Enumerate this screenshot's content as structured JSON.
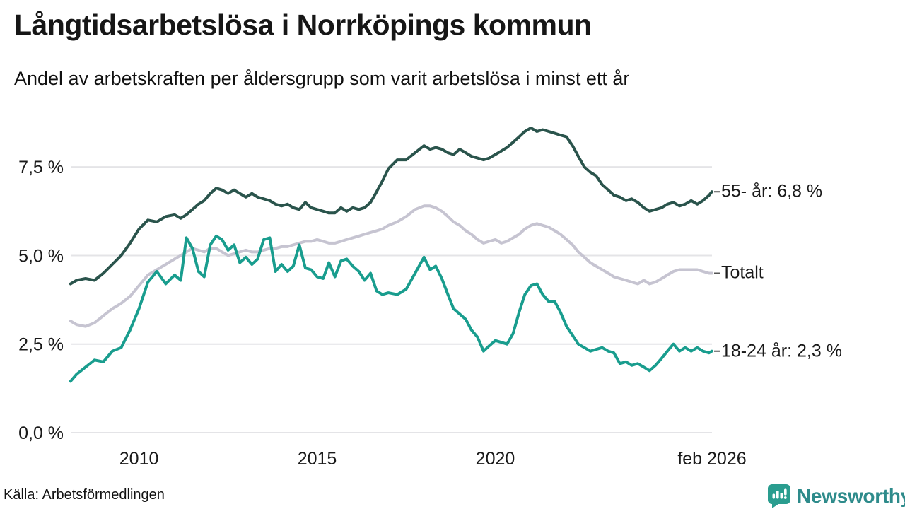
{
  "chart_data": {
    "type": "line",
    "title": "Långtidsarbetslösa i Norrköpings kommun",
    "subtitle": "Andel av arbetskraften per åldersgrupp som varit arbetslösa i minst ett år",
    "source": "Källa: Arbetsförmedlingen",
    "x_range": [
      2008.083,
      2026.083
    ],
    "y_range": [
      0,
      8.9
    ],
    "grid": "horizontal-only",
    "legend_position": "end-of-line-labels-right",
    "y_ticks": [
      {
        "value": 0,
        "label": "0,0 %"
      },
      {
        "value": 2.5,
        "label": "2,5 %"
      },
      {
        "value": 5,
        "label": "5,0 %"
      },
      {
        "value": 7.5,
        "label": "7,5 %"
      }
    ],
    "x_ticks": [
      {
        "value": 2010,
        "label": "2010"
      },
      {
        "value": 2015,
        "label": "2015"
      },
      {
        "value": 2020,
        "label": "2020"
      },
      {
        "value": 2026.083,
        "label": "feb 2026"
      }
    ],
    "x": [
      2008.08,
      2008.25,
      2008.5,
      2008.75,
      2009,
      2009.25,
      2009.5,
      2009.75,
      2010,
      2010.25,
      2010.5,
      2010.75,
      2011,
      2011.17,
      2011.33,
      2011.5,
      2011.67,
      2011.83,
      2012,
      2012.17,
      2012.33,
      2012.5,
      2012.67,
      2012.83,
      2013,
      2013.17,
      2013.33,
      2013.5,
      2013.67,
      2013.83,
      2014,
      2014.17,
      2014.33,
      2014.5,
      2014.67,
      2014.83,
      2015,
      2015.17,
      2015.33,
      2015.5,
      2015.67,
      2015.83,
      2016,
      2016.17,
      2016.33,
      2016.5,
      2016.67,
      2016.83,
      2017,
      2017.25,
      2017.5,
      2017.75,
      2018,
      2018.17,
      2018.33,
      2018.5,
      2018.67,
      2018.83,
      2019,
      2019.17,
      2019.33,
      2019.5,
      2019.67,
      2019.83,
      2020,
      2020.17,
      2020.33,
      2020.5,
      2020.67,
      2020.83,
      2021,
      2021.17,
      2021.33,
      2021.5,
      2021.67,
      2021.83,
      2022,
      2022.17,
      2022.33,
      2022.5,
      2022.67,
      2022.83,
      2023,
      2023.17,
      2023.33,
      2023.5,
      2023.67,
      2023.83,
      2024,
      2024.17,
      2024.33,
      2024.5,
      2024.67,
      2024.83,
      2025,
      2025.17,
      2025.33,
      2025.5,
      2025.67,
      2025.83,
      2026,
      2026.08
    ],
    "series": [
      {
        "id": "55-ar",
        "label": "55- år",
        "end_label": "55- år: 6,8 %",
        "final_value": "6,8 %",
        "color": "#2a544c",
        "values": [
          4.2,
          4.3,
          4.35,
          4.3,
          4.5,
          4.75,
          5.0,
          5.35,
          5.75,
          6.0,
          5.95,
          6.1,
          6.15,
          6.05,
          6.15,
          6.3,
          6.45,
          6.55,
          6.75,
          6.9,
          6.85,
          6.75,
          6.85,
          6.75,
          6.65,
          6.75,
          6.65,
          6.6,
          6.55,
          6.45,
          6.4,
          6.45,
          6.35,
          6.3,
          6.5,
          6.35,
          6.3,
          6.25,
          6.2,
          6.2,
          6.35,
          6.25,
          6.35,
          6.3,
          6.35,
          6.5,
          6.8,
          7.1,
          7.45,
          7.7,
          7.7,
          7.9,
          8.1,
          8.0,
          8.05,
          8.0,
          7.9,
          7.85,
          8.0,
          7.9,
          7.8,
          7.75,
          7.7,
          7.75,
          7.85,
          7.95,
          8.05,
          8.2,
          8.35,
          8.5,
          8.6,
          8.5,
          8.55,
          8.5,
          8.45,
          8.4,
          8.35,
          8.1,
          7.8,
          7.5,
          7.35,
          7.25,
          7.0,
          6.85,
          6.7,
          6.65,
          6.55,
          6.6,
          6.5,
          6.35,
          6.25,
          6.3,
          6.35,
          6.45,
          6.5,
          6.4,
          6.45,
          6.55,
          6.45,
          6.55,
          6.7,
          6.8
        ]
      },
      {
        "id": "totalt",
        "label": "Totalt",
        "end_label": "Totalt",
        "final_value": "",
        "color": "#c6c4d1",
        "values": [
          3.15,
          3.05,
          3.0,
          3.1,
          3.3,
          3.5,
          3.65,
          3.85,
          4.15,
          4.45,
          4.6,
          4.75,
          4.9,
          5.0,
          5.1,
          5.2,
          5.15,
          5.1,
          5.2,
          5.2,
          5.1,
          5.0,
          5.05,
          5.1,
          5.15,
          5.1,
          5.1,
          5.15,
          5.2,
          5.2,
          5.25,
          5.25,
          5.3,
          5.35,
          5.4,
          5.4,
          5.45,
          5.4,
          5.35,
          5.35,
          5.4,
          5.45,
          5.5,
          5.55,
          5.6,
          5.65,
          5.7,
          5.75,
          5.85,
          5.95,
          6.1,
          6.3,
          6.4,
          6.4,
          6.35,
          6.25,
          6.1,
          5.95,
          5.85,
          5.7,
          5.6,
          5.45,
          5.35,
          5.4,
          5.45,
          5.35,
          5.4,
          5.5,
          5.6,
          5.75,
          5.85,
          5.9,
          5.85,
          5.8,
          5.7,
          5.6,
          5.45,
          5.3,
          5.1,
          4.95,
          4.8,
          4.7,
          4.6,
          4.5,
          4.4,
          4.35,
          4.3,
          4.25,
          4.2,
          4.3,
          4.2,
          4.25,
          4.35,
          4.45,
          4.55,
          4.6,
          4.6,
          4.6,
          4.6,
          4.55,
          4.5,
          4.5
        ]
      },
      {
        "id": "18-24-ar",
        "label": "18-24 år",
        "end_label": "18-24 år: 2,3 %",
        "final_value": "2,3 %",
        "color": "#199d8e",
        "values": [
          1.45,
          1.65,
          1.85,
          2.05,
          2.0,
          2.3,
          2.4,
          2.9,
          3.5,
          4.25,
          4.55,
          4.2,
          4.45,
          4.3,
          5.5,
          5.2,
          4.55,
          4.4,
          5.3,
          5.55,
          5.45,
          5.15,
          5.3,
          4.8,
          4.95,
          4.75,
          4.9,
          5.45,
          5.5,
          4.55,
          4.75,
          4.55,
          4.7,
          5.3,
          4.65,
          4.6,
          4.4,
          4.35,
          4.8,
          4.4,
          4.85,
          4.9,
          4.7,
          4.55,
          4.3,
          4.5,
          4.0,
          3.9,
          3.95,
          3.9,
          4.05,
          4.5,
          4.95,
          4.6,
          4.7,
          4.35,
          3.9,
          3.5,
          3.35,
          3.2,
          2.9,
          2.7,
          2.3,
          2.45,
          2.6,
          2.55,
          2.5,
          2.8,
          3.4,
          3.9,
          4.15,
          4.2,
          3.9,
          3.7,
          3.7,
          3.4,
          3.0,
          2.75,
          2.5,
          2.4,
          2.3,
          2.35,
          2.4,
          2.3,
          2.25,
          1.95,
          2.0,
          1.9,
          1.95,
          1.85,
          1.75,
          1.9,
          2.1,
          2.3,
          2.5,
          2.3,
          2.4,
          2.3,
          2.4,
          2.3,
          2.25,
          2.3
        ]
      }
    ]
  },
  "logo": {
    "name": "Newsworthy",
    "icon": "newsworthy-speech-bubble-bar-chart-icon",
    "text_color": "#2e8b8b",
    "icon_color": "#2a9d8f"
  },
  "colors": {
    "background": "#ffffff",
    "grid": "#e4e4e7",
    "axis_text": "#1a1a1a",
    "end_tick_dash": "#555555"
  }
}
